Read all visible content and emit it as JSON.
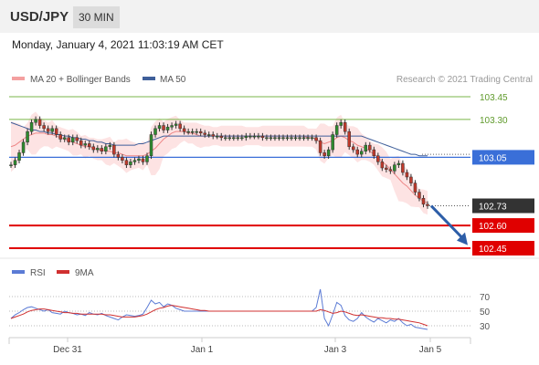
{
  "header": {
    "symbol": "USD/JPY",
    "timeframe": "30 MIN"
  },
  "timestamp": "Monday, January 4, 2021 11:03:19 AM CET",
  "colors": {
    "ma20": "#f4a0a0",
    "ma50": "#3f5f9a",
    "support": "#e00000",
    "resistance": "#7ab648",
    "pivot": "#3a6fd8",
    "price": "#333333",
    "rsi": "#5b7bd5",
    "rsi_ma": "#d03030"
  },
  "chart_data": [
    {
      "type": "line",
      "title": "",
      "legend": [
        {
          "name": "MA 20 + Bollinger Bands"
        },
        {
          "name": "MA 50"
        }
      ],
      "legend_placement": "top-left",
      "source": "Research © 2021 Trading Central",
      "x_ticks": [
        "Dec 31",
        "Jan 1",
        "Jan 3",
        "Jan 5"
      ],
      "ylim": [
        102.42,
        103.52
      ],
      "levels": [
        {
          "label": "103.45",
          "value": 103.45,
          "kind": "resistance"
        },
        {
          "label": "103.30",
          "value": 103.3,
          "kind": "resistance"
        },
        {
          "label": "103.05",
          "value": 103.05,
          "kind": "pivot"
        },
        {
          "label": "102.73",
          "value": 102.73,
          "kind": "last"
        },
        {
          "label": "102.60",
          "value": 102.6,
          "kind": "support"
        },
        {
          "label": "102.45",
          "value": 102.45,
          "kind": "support"
        }
      ],
      "price": [
        103.0,
        103.03,
        103.08,
        103.15,
        103.22,
        103.28,
        103.3,
        103.26,
        103.24,
        103.22,
        103.24,
        103.2,
        103.17,
        103.18,
        103.15,
        103.18,
        103.16,
        103.13,
        103.14,
        103.12,
        103.1,
        103.11,
        103.09,
        103.12,
        103.13,
        103.07,
        103.05,
        103.03,
        103.0,
        103.02,
        103.03,
        103.04,
        103.02,
        103.06,
        103.2,
        103.24,
        103.26,
        103.23,
        103.25,
        103.26,
        103.27,
        103.24,
        103.22,
        103.22,
        103.22,
        103.22,
        103.21,
        103.2,
        103.2,
        103.19,
        103.19,
        103.18,
        103.18,
        103.18,
        103.18,
        103.18,
        103.18,
        103.19,
        103.19,
        103.19,
        103.19,
        103.18,
        103.18,
        103.18,
        103.18,
        103.18,
        103.18,
        103.18,
        103.18,
        103.18,
        103.18,
        103.18,
        103.18,
        103.18,
        103.16,
        103.08,
        103.06,
        103.1,
        103.2,
        103.26,
        103.28,
        103.22,
        103.12,
        103.1,
        103.07,
        103.09,
        103.13,
        103.1,
        103.06,
        103.02,
        102.98,
        102.97,
        102.96,
        103.0,
        103.01,
        102.95,
        102.92,
        102.88,
        102.82,
        102.78,
        102.74,
        102.73
      ],
      "ma20": [
        103.12,
        103.13,
        103.15,
        103.17,
        103.19,
        103.2,
        103.21,
        103.21,
        103.21,
        103.2,
        103.2,
        103.19,
        103.18,
        103.17,
        103.16,
        103.15,
        103.14,
        103.13,
        103.12,
        103.12,
        103.11,
        103.1,
        103.1,
        103.09,
        103.09,
        103.08,
        103.08,
        103.07,
        103.06,
        103.06,
        103.06,
        103.06,
        103.06,
        103.07,
        103.09,
        103.11,
        103.14,
        103.17,
        103.19,
        103.21,
        103.22,
        103.22,
        103.22,
        103.21,
        103.21,
        103.2,
        103.19,
        103.19,
        103.19,
        103.19,
        103.19,
        103.19,
        103.19,
        103.19,
        103.19,
        103.19,
        103.19,
        103.19,
        103.19,
        103.19,
        103.19,
        103.19,
        103.19,
        103.19,
        103.19,
        103.19,
        103.19,
        103.19,
        103.19,
        103.19,
        103.19,
        103.19,
        103.18,
        103.18,
        103.17,
        103.15,
        103.14,
        103.15,
        103.16,
        103.18,
        103.19,
        103.18,
        103.16,
        103.15,
        103.13,
        103.12,
        103.11,
        103.09,
        103.07,
        103.05,
        103.02,
        103.0,
        102.97,
        102.94,
        102.91,
        102.88,
        102.86,
        102.83,
        102.8,
        102.78,
        102.76,
        102.75
      ],
      "ma50": [
        103.28,
        103.27,
        103.26,
        103.25,
        103.24,
        103.23,
        103.23,
        103.22,
        103.22,
        103.21,
        103.21,
        103.2,
        103.2,
        103.19,
        103.19,
        103.18,
        103.18,
        103.17,
        103.17,
        103.16,
        103.16,
        103.15,
        103.15,
        103.14,
        103.14,
        103.13,
        103.13,
        103.13,
        103.13,
        103.13,
        103.13,
        103.14,
        103.14,
        103.15,
        103.16,
        103.17,
        103.18,
        103.19,
        103.19,
        103.19,
        103.19,
        103.19,
        103.19,
        103.19,
        103.19,
        103.19,
        103.19,
        103.19,
        103.19,
        103.19,
        103.19,
        103.19,
        103.19,
        103.19,
        103.19,
        103.19,
        103.19,
        103.19,
        103.19,
        103.19,
        103.19,
        103.19,
        103.19,
        103.19,
        103.19,
        103.19,
        103.19,
        103.19,
        103.19,
        103.19,
        103.19,
        103.19,
        103.19,
        103.19,
        103.19,
        103.19,
        103.19,
        103.19,
        103.19,
        103.19,
        103.19,
        103.19,
        103.19,
        103.19,
        103.19,
        103.19,
        103.18,
        103.17,
        103.16,
        103.15,
        103.14,
        103.13,
        103.12,
        103.11,
        103.1,
        103.09,
        103.08,
        103.07,
        103.07,
        103.06,
        103.06,
        103.06
      ],
      "forecast_arrow": {
        "from": 102.73,
        "to": 102.47
      }
    },
    {
      "type": "line",
      "legend": [
        {
          "name": "RSI"
        },
        {
          "name": "9MA"
        }
      ],
      "ylim": [
        15,
        85
      ],
      "y_ticks": [
        "70",
        "50",
        "30"
      ],
      "rsi": [
        40,
        45,
        48,
        52,
        55,
        56,
        54,
        52,
        50,
        52,
        48,
        47,
        46,
        50,
        48,
        47,
        45,
        46,
        44,
        48,
        46,
        45,
        47,
        44,
        42,
        40,
        38,
        42,
        45,
        44,
        43,
        44,
        46,
        55,
        65,
        60,
        62,
        56,
        60,
        58,
        54,
        52,
        50,
        50,
        50,
        50,
        50,
        50,
        50,
        50,
        50,
        50,
        50,
        50,
        50,
        50,
        50,
        50,
        50,
        50,
        50,
        50,
        50,
        50,
        50,
        50,
        50,
        50,
        50,
        50,
        50,
        50,
        50,
        50,
        55,
        80,
        40,
        30,
        45,
        62,
        58,
        44,
        38,
        36,
        40,
        48,
        42,
        38,
        35,
        40,
        37,
        34,
        38,
        36,
        40,
        34,
        30,
        32,
        28,
        27,
        26,
        25
      ],
      "rsi_ma": [
        40,
        42,
        44,
        46,
        49,
        51,
        52,
        53,
        53,
        52,
        51,
        50,
        49,
        48,
        48,
        47,
        47,
        46,
        46,
        46,
        46,
        46,
        46,
        45,
        45,
        44,
        43,
        42,
        42,
        42,
        42,
        43,
        44,
        46,
        49,
        52,
        54,
        55,
        57,
        58,
        57,
        56,
        55,
        54,
        53,
        52,
        51,
        51,
        50,
        50,
        50,
        50,
        50,
        50,
        50,
        50,
        50,
        50,
        50,
        50,
        50,
        50,
        50,
        50,
        50,
        50,
        50,
        50,
        50,
        50,
        50,
        50,
        50,
        50,
        50,
        52,
        51,
        49,
        47,
        48,
        50,
        49,
        47,
        45,
        44,
        45,
        44,
        43,
        42,
        41,
        41,
        40,
        40,
        39,
        39,
        38,
        37,
        36,
        35,
        34,
        32,
        30
      ]
    }
  ]
}
